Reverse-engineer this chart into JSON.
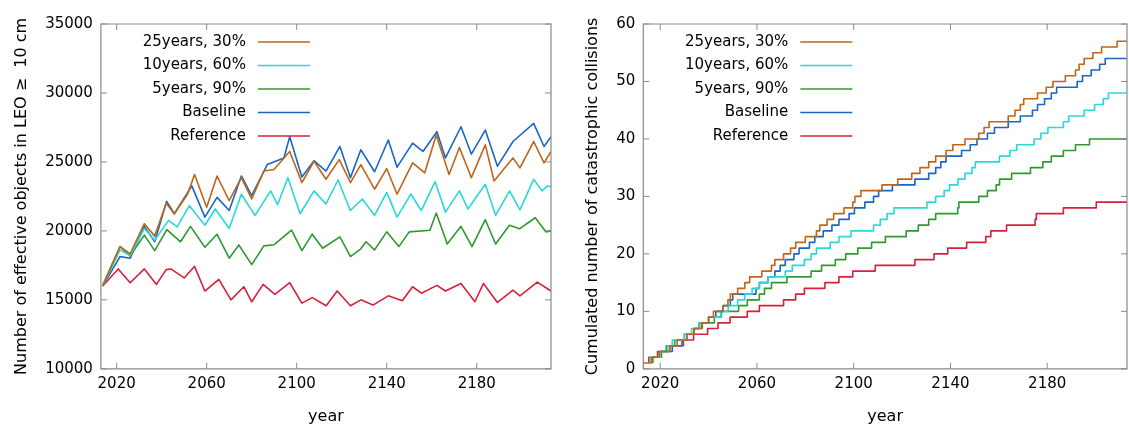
{
  "chart_data": [
    {
      "type": "line",
      "xlabel": "year",
      "ylabel": "Number of effective objects in LEO ≥  10 cm",
      "xlim": [
        2013,
        2213
      ],
      "xticks": [
        2020,
        2060,
        2100,
        2140,
        2180
      ],
      "ylim": [
        10000,
        35000
      ],
      "yticks": [
        10000,
        15000,
        20000,
        25000,
        30000,
        35000
      ],
      "grid": false,
      "legend": "top left",
      "series": [
        {
          "name": "25years, 30%",
          "color": "#c0651a",
          "x": [
            2013.8,
            2021.5,
            2026,
            2032.3,
            2036.9,
            2042,
            2045.6,
            2051.5,
            2054.6,
            2060,
            2064.6,
            2070,
            2075.4,
            2080,
            2085.4,
            2089.9,
            2096.9,
            2102.3,
            2107.7,
            2113,
            2118.9,
            2123.9,
            2128.5,
            2134.6,
            2140,
            2144.6,
            2151.5,
            2156.9,
            2162,
            2167.7,
            2172.3,
            2177.6,
            2183.8,
            2187.7,
            2196.1,
            2199.2,
            2205.3,
            2209.9,
            2213
          ],
          "values": [
            16000,
            18860,
            18330,
            20520,
            19620,
            22000,
            21240,
            22660,
            24090,
            21710,
            23980,
            22190,
            23860,
            22310,
            24340,
            24450,
            25760,
            23500,
            25050,
            23740,
            25170,
            23500,
            24800,
            23020,
            24520,
            22660,
            24930,
            24210,
            26950,
            24090,
            26050,
            23860,
            26240,
            23620,
            25290,
            24570,
            26480,
            24930,
            25760
          ]
        },
        {
          "name": "10years, 60%",
          "color": "#2ad8d8",
          "x": [
            2013.8,
            2021.5,
            2026,
            2032.3,
            2036.9,
            2043.1,
            2046.9,
            2052.3,
            2059.2,
            2063.8,
            2070,
            2075.4,
            2081.5,
            2088.4,
            2091.5,
            2096.1,
            2101.5,
            2107.7,
            2113,
            2118.4,
            2123.8,
            2129.2,
            2134.6,
            2140,
            2144.6,
            2150.7,
            2155.4,
            2161.5,
            2166.1,
            2172.3,
            2176.1,
            2183.8,
            2188.4,
            2194.6,
            2199.2,
            2205.3,
            2209,
            2211.5,
            2213
          ],
          "values": [
            16000,
            18620,
            18200,
            20170,
            19330,
            20760,
            20290,
            21830,
            20410,
            21590,
            20170,
            22660,
            21120,
            22900,
            21900,
            23860,
            21240,
            22900,
            21950,
            23690,
            21480,
            22310,
            21120,
            22790,
            21000,
            22670,
            21480,
            23570,
            21360,
            22900,
            21590,
            23380,
            21120,
            22900,
            21520,
            23740,
            22900,
            23260,
            23200
          ]
        },
        {
          "name": "5years, 90%",
          "color": "#2e9a2e",
          "x": [
            2013.8,
            2021.5,
            2026,
            2032.3,
            2036.9,
            2042.3,
            2048.4,
            2052.8,
            2059.2,
            2064.6,
            2070,
            2074.3,
            2080,
            2085.4,
            2090,
            2097.7,
            2102.3,
            2106.9,
            2111.5,
            2119.2,
            2123.9,
            2128.5,
            2130.8,
            2134.6,
            2140,
            2145.4,
            2150,
            2159.2,
            2162,
            2166.9,
            2173,
            2177.9,
            2183.8,
            2188.4,
            2194.5,
            2199,
            2206,
            2210.7,
            2213
          ],
          "values": [
            16070,
            18860,
            18190,
            19690,
            18570,
            20090,
            19210,
            20330,
            18810,
            19760,
            18020,
            18980,
            17550,
            18910,
            19000,
            20050,
            18570,
            19760,
            18740,
            19570,
            18140,
            18700,
            19210,
            18620,
            19930,
            18860,
            19930,
            20050,
            21290,
            19050,
            20330,
            18860,
            20810,
            19050,
            20410,
            20150,
            20950,
            19930,
            20000
          ]
        },
        {
          "name": "Baseline",
          "color": "#1a66c0",
          "x": [
            2013.8,
            2021.5,
            2026,
            2032.3,
            2036.9,
            2042.2,
            2045.6,
            2053.4,
            2059.2,
            2064.6,
            2070,
            2075.4,
            2080,
            2086.9,
            2094.3,
            2096.9,
            2102.3,
            2107.7,
            2113,
            2119.2,
            2123.9,
            2128.5,
            2134.6,
            2140.7,
            2144.6,
            2151.5,
            2156.1,
            2162.3,
            2166.1,
            2173,
            2177.6,
            2183.8,
            2189.2,
            2196.1,
            2205.3,
            2209.9,
            2213
          ],
          "values": [
            16000,
            18140,
            18020,
            20330,
            19210,
            22140,
            21240,
            23260,
            21000,
            22430,
            21480,
            23980,
            22550,
            24810,
            25290,
            26830,
            23900,
            25090,
            24340,
            26120,
            23860,
            25880,
            24290,
            26590,
            24620,
            26360,
            25760,
            27190,
            25290,
            27550,
            25570,
            27310,
            24690,
            26480,
            27790,
            26120,
            26830
          ]
        },
        {
          "name": "Reference",
          "color": "#d8203c",
          "x": [
            2013.8,
            2020.7,
            2026,
            2032.3,
            2037.7,
            2042,
            2044.1,
            2050,
            2054.6,
            2059.2,
            2065.4,
            2070.8,
            2076.5,
            2080,
            2085.1,
            2090.3,
            2096.9,
            2102.3,
            2106.9,
            2113.1,
            2118,
            2123.9,
            2128.5,
            2133.9,
            2140.7,
            2146.9,
            2151.5,
            2155.4,
            2162.3,
            2166.1,
            2173,
            2179.2,
            2183,
            2189.2,
            2196.1,
            2199.2,
            2206.9,
            2213
          ],
          "values": [
            16000,
            17240,
            16240,
            17240,
            16120,
            17190,
            17240,
            16590,
            17430,
            15640,
            16480,
            15000,
            15950,
            14860,
            16120,
            15400,
            16240,
            14760,
            15160,
            14570,
            15640,
            14570,
            15000,
            14620,
            15290,
            14930,
            15950,
            15480,
            16050,
            15640,
            16190,
            14860,
            16190,
            14810,
            15710,
            15290,
            16290,
            15640
          ]
        }
      ]
    },
    {
      "type": "step",
      "xlabel": "year",
      "ylabel": "Cumulated number of catastrophic collisions",
      "xlim": [
        2013,
        2213
      ],
      "xticks": [
        2020,
        2060,
        2100,
        2140,
        2180
      ],
      "ylim": [
        0,
        60
      ],
      "yticks": [
        0,
        10,
        20,
        30,
        40,
        50,
        60
      ],
      "grid": false,
      "legend": "top left",
      "series": [
        {
          "name": "25years, 30%",
          "color": "#c0651a",
          "x": [
            2013,
            2016.5,
            2019.5,
            2024,
            2027,
            2031,
            2034,
            2037,
            2040,
            2042,
            2046,
            2048,
            2049,
            2052,
            2055,
            2057,
            2062,
            2063.5,
            2066,
            2067.4,
            2071,
            2073.9,
            2076,
            2080,
            2084.6,
            2086,
            2089,
            2091.7,
            2096,
            2099.6,
            2100.5,
            2103,
            2111.7,
            2118.2,
            2124,
            2127.4,
            2131,
            2133.9,
            2138.2,
            2141,
            2146,
            2151.7,
            2153.9,
            2156,
            2163.9,
            2166.7,
            2168.9,
            2170.3,
            2176,
            2179.6,
            2182.4,
            2187.5,
            2191.7,
            2193.2,
            2195.3,
            2198.9,
            2202.5,
            2208.9,
            2210,
            2213
          ],
          "values": [
            0,
            1,
            2,
            3,
            4,
            5,
            6,
            7,
            8,
            9,
            10,
            11,
            12,
            13,
            14,
            15,
            16,
            17,
            17,
            18,
            19,
            20,
            21,
            22,
            23,
            24,
            25,
            26,
            27,
            28,
            29,
            30,
            31,
            32,
            33,
            34,
            35,
            36,
            37,
            38,
            39,
            40,
            41,
            42,
            43,
            44,
            45,
            46,
            47,
            48,
            49,
            50,
            51,
            52,
            53,
            54,
            55,
            56,
            57,
            57
          ]
        },
        {
          "name": "10years, 60%",
          "color": "#2ad8d8",
          "x": [
            2016,
            2020,
            2023,
            2025,
            2030,
            2033,
            2036,
            2040,
            2045,
            2048.1,
            2052,
            2055,
            2058,
            2061,
            2064.6,
            2071.7,
            2074.6,
            2079.6,
            2082.4,
            2084.6,
            2090.3,
            2093.9,
            2098.9,
            2108.2,
            2111,
            2113.8,
            2116.7,
            2130.3,
            2133.9,
            2137.4,
            2139.6,
            2143.1,
            2146,
            2148.9,
            2150.3,
            2160.3,
            2164.6,
            2167.4,
            2174.6,
            2177.4,
            2180.3,
            2186.7,
            2188.9,
            2195.3,
            2199.6,
            2203.2,
            2205.3,
            2207.4,
            2213
          ],
          "values": [
            1,
            2,
            3,
            4,
            5,
            6,
            7,
            8,
            9,
            10,
            11,
            12,
            13,
            14,
            15,
            16,
            17,
            18,
            19,
            20,
            21,
            22,
            23,
            24,
            25,
            26,
            27,
            28,
            29,
            30,
            31,
            32,
            33,
            34,
            35,
            36,
            37,
            38,
            39,
            40,
            41,
            42,
            43,
            44,
            45,
            46,
            47,
            48,
            48
          ]
        },
        {
          "name": "5years, 90%",
          "color": "#2e9a2e",
          "x": [
            2017,
            2020.5,
            2022.5,
            2026,
            2030,
            2034,
            2037.4,
            2042.4,
            2045.3,
            2052.4,
            2056,
            2061,
            2063.1,
            2066,
            2072.4,
            2082.4,
            2086.7,
            2092.4,
            2096.7,
            2101.7,
            2107.4,
            2113.1,
            2121.7,
            2126.7,
            2131,
            2133.9,
            2143,
            2143.5,
            2151.7,
            2155.3,
            2158.9,
            2160.3,
            2165.3,
            2173.1,
            2178.2,
            2181.7,
            2186.7,
            2191.7,
            2197.5,
            2205.3,
            2213
          ],
          "values": [
            1,
            2,
            3,
            4,
            5,
            6,
            7,
            8,
            9,
            10,
            11,
            12,
            13,
            14,
            15,
            16,
            17,
            18,
            19,
            20,
            21,
            22,
            23,
            24,
            25,
            26,
            27,
            28,
            29,
            30,
            31,
            32,
            33,
            34,
            35,
            36,
            37,
            38,
            39,
            40,
            40
          ]
        },
        {
          "name": "Baseline",
          "color": "#1a66c0",
          "x": [
            2016.3,
            2019.8,
            2025,
            2029,
            2031,
            2034,
            2036,
            2040,
            2043,
            2046,
            2049,
            2050,
            2059.6,
            2061,
            2064.6,
            2067.4,
            2069.6,
            2071.7,
            2075.3,
            2077.4,
            2081.7,
            2083.9,
            2087.4,
            2091,
            2093.9,
            2098.1,
            2100.3,
            2104.6,
            2108.2,
            2110.3,
            2116,
            2125.3,
            2131,
            2133.9,
            2136,
            2138.2,
            2144.6,
            2148.2,
            2151,
            2155.3,
            2158.2,
            2163.9,
            2168.9,
            2173.9,
            2176,
            2178.9,
            2181.7,
            2183.9,
            2192.4,
            2194.6,
            2198.2,
            2201.7,
            2204,
            2209.6,
            2213
          ],
          "values": [
            1,
            2,
            3,
            4,
            5,
            6,
            7,
            8,
            9,
            10,
            11,
            12,
            13,
            14,
            15,
            16,
            17,
            18,
            19,
            20,
            21,
            22,
            23,
            24,
            25,
            26,
            27,
            28,
            29,
            30,
            31,
            32,
            33,
            34,
            35,
            36,
            37,
            38,
            39,
            40,
            41,
            42,
            43,
            44,
            45,
            46,
            47,
            48,
            49,
            50,
            51,
            52,
            53,
            54,
            54
          ]
        },
        {
          "name": "Reference",
          "color": "#d8203c",
          "x": [
            2015.3,
            2018.9,
            2023.9,
            2029.6,
            2033.8,
            2039.6,
            2043.9,
            2048.9,
            2056,
            2061,
            2071,
            2076,
            2079.6,
            2088.1,
            2093.9,
            2099.6,
            2108.9,
            2125.3,
            2133.2,
            2138.9,
            2146.7,
            2154.6,
            2156.7,
            2163.2,
            2175,
            2175.5,
            2186.7,
            2200.3,
            2205.3,
            2213
          ],
          "values": [
            1,
            2,
            3,
            4,
            5,
            6,
            7,
            8,
            9,
            10,
            11,
            12,
            13,
            14,
            15,
            16,
            17,
            18,
            19,
            20,
            21,
            22,
            23,
            24,
            25,
            26,
            27,
            28,
            29,
            29
          ]
        }
      ]
    }
  ]
}
